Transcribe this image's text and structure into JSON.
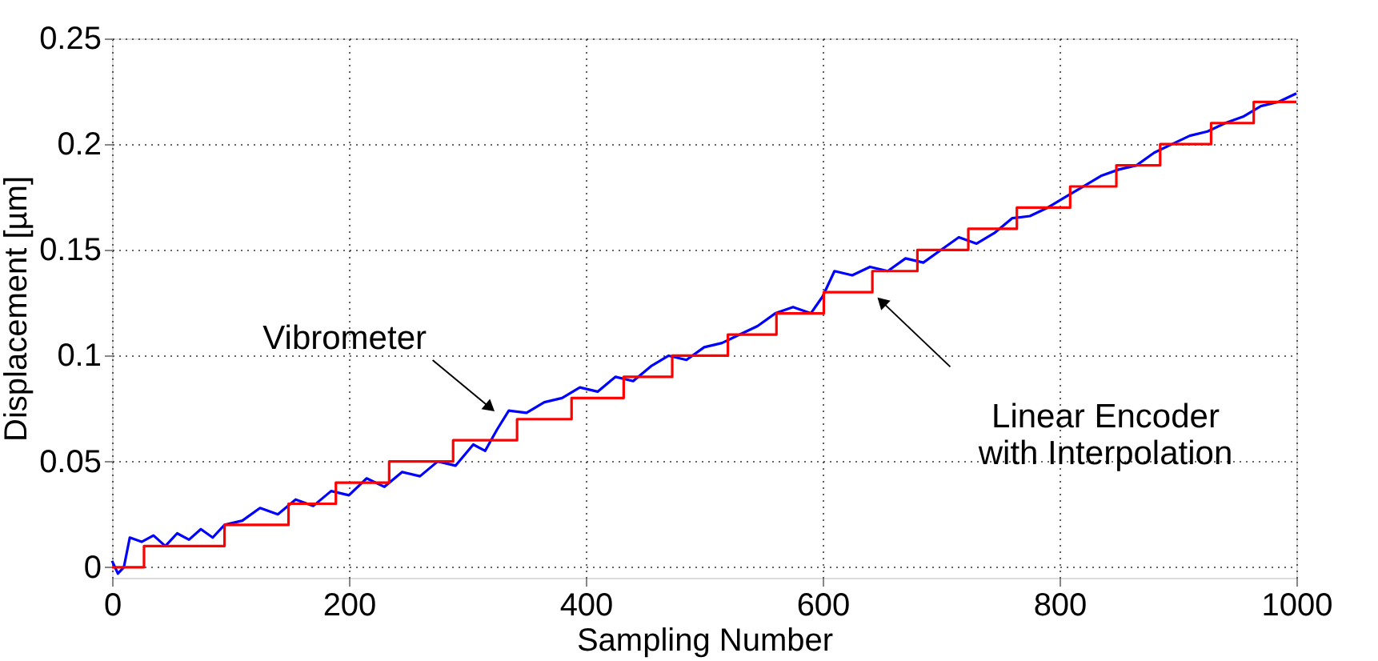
{
  "chart_data": {
    "type": "line",
    "xlabel": "Sampling Number",
    "ylabel": "Displacement [µm]",
    "xlim": [
      0,
      1000
    ],
    "xticks": [
      0,
      200,
      400,
      600,
      800,
      1000
    ],
    "ylim": [
      -0.005,
      0.25
    ],
    "yticks": [
      0,
      0.05,
      0.1,
      0.15,
      0.2,
      0.25
    ],
    "grid": true,
    "line_style": "solid",
    "marker": "none",
    "series": [
      {
        "color": "#0000ff",
        "x": [
          0,
          5,
          10,
          15,
          25,
          35,
          45,
          55,
          65,
          75,
          85,
          95,
          110,
          125,
          140,
          155,
          170,
          185,
          200,
          215,
          230,
          245,
          260,
          275,
          290,
          305,
          315,
          325,
          335,
          350,
          365,
          380,
          395,
          410,
          425,
          440,
          455,
          470,
          485,
          500,
          515,
          530,
          545,
          560,
          575,
          590,
          600,
          610,
          625,
          640,
          655,
          670,
          685,
          700,
          715,
          730,
          745,
          760,
          775,
          790,
          805,
          820,
          835,
          850,
          865,
          880,
          895,
          910,
          925,
          940,
          955,
          970,
          985,
          1000
        ],
        "values": [
          0.003,
          -0.003,
          0.0,
          0.014,
          0.012,
          0.015,
          0.01,
          0.016,
          0.013,
          0.018,
          0.014,
          0.02,
          0.022,
          0.028,
          0.025,
          0.032,
          0.029,
          0.036,
          0.034,
          0.042,
          0.038,
          0.045,
          0.043,
          0.05,
          0.048,
          0.058,
          0.055,
          0.065,
          0.074,
          0.073,
          0.078,
          0.08,
          0.085,
          0.083,
          0.09,
          0.088,
          0.095,
          0.1,
          0.098,
          0.104,
          0.106,
          0.11,
          0.114,
          0.12,
          0.123,
          0.12,
          0.128,
          0.14,
          0.138,
          0.142,
          0.14,
          0.146,
          0.144,
          0.15,
          0.156,
          0.153,
          0.158,
          0.165,
          0.166,
          0.17,
          0.175,
          0.18,
          0.185,
          0.188,
          0.19,
          0.196,
          0.2,
          0.204,
          0.206,
          0.21,
          0.213,
          0.218,
          0.22,
          0.224
        ]
      },
      {
        "type": "step",
        "color": "#ff0000",
        "x": [
          0,
          27,
          95,
          149,
          189,
          234,
          288,
          342,
          388,
          432,
          473,
          520,
          561,
          601,
          642,
          680,
          723,
          764,
          809,
          848,
          885,
          928,
          964,
          1000
        ],
        "values": [
          0,
          0.01,
          0.02,
          0.03,
          0.04,
          0.05,
          0.06,
          0.07,
          0.08,
          0.09,
          0.1,
          0.11,
          0.12,
          0.13,
          0.14,
          0.15,
          0.16,
          0.17,
          0.18,
          0.19,
          0.2,
          0.21,
          0.22,
          0.22
        ]
      }
    ],
    "annotations": [
      {
        "text": "Vibrometer",
        "x": 318,
        "y": 0.076
      },
      {
        "text": "Linear Encoder\nwith Interpolation",
        "x": 651,
        "y": 0.125
      }
    ]
  }
}
